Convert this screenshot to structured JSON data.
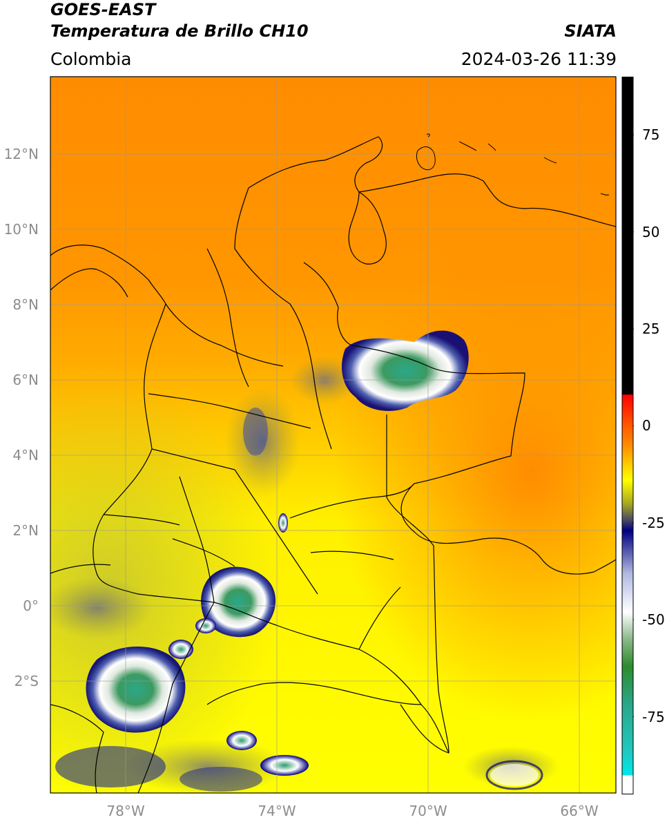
{
  "header": {
    "title_line1": "GOES-EAST",
    "title_line2": "Temperatura de Brillo CH10",
    "region": "Colombia",
    "source": "SIATA",
    "timestamp": "2024-03-26 11:39"
  },
  "map": {
    "lat_ticks": [
      {
        "label": "12°N",
        "lat": 12
      },
      {
        "label": "10°N",
        "lat": 10
      },
      {
        "label": "8°N",
        "lat": 8
      },
      {
        "label": "6°N",
        "lat": 6
      },
      {
        "label": "4°N",
        "lat": 4
      },
      {
        "label": "2°N",
        "lat": 2
      },
      {
        "label": "0°",
        "lat": 0
      },
      {
        "label": "2°S",
        "lat": -2
      }
    ],
    "lon_ticks": [
      {
        "label": "78°W",
        "lon": -78
      },
      {
        "label": "74°W",
        "lon": -74
      },
      {
        "label": "70°W",
        "lon": -70
      },
      {
        "label": "66°W",
        "lon": -66
      }
    ],
    "extent": {
      "lon_min": -80,
      "lon_max": -65,
      "lat_min": -5,
      "lat_max": 14
    },
    "gridlines": true
  },
  "colorbar": {
    "ticks": [
      {
        "label": "75",
        "value": 75
      },
      {
        "label": "50",
        "value": 50
      },
      {
        "label": "25",
        "value": 25
      },
      {
        "label": "0",
        "value": 0
      },
      {
        "label": "-25",
        "value": -25
      },
      {
        "label": "-50",
        "value": -50
      },
      {
        "label": "-75",
        "value": -75
      }
    ],
    "range": [
      -95,
      90
    ],
    "colors": {
      "black_above": "#000000",
      "red": "#ff0000",
      "orange": "#ff8c00",
      "yellow": "#ffff00",
      "olive": "#a8a820",
      "navy": "#000080",
      "white": "#ffffff",
      "green": "#2e8b2e",
      "teal": "#2aa88a",
      "cyan": "#00e5e5"
    }
  }
}
